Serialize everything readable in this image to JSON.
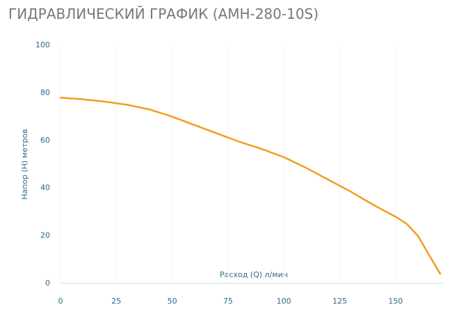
{
  "chart_data": {
    "type": "line",
    "title": "ГИДРАВЛИЧЕСКИЙ ГРАФИК (AMH-280-10S)",
    "x_label": "Расход (Q) л/мин",
    "y_label": "Напор (H) метров",
    "x": [
      0,
      10,
      20,
      30,
      40,
      50,
      60,
      70,
      80,
      90,
      100,
      110,
      120,
      130,
      140,
      150,
      155,
      160,
      165,
      170
    ],
    "series": [
      {
        "name": "AMH-280-10S",
        "color": "#f39c1f",
        "values": [
          78,
          77.3,
          76.3,
          75,
          73,
          70,
          66.5,
          63,
          59.5,
          56.5,
          53,
          48.5,
          43.5,
          38.5,
          33,
          28,
          25,
          20,
          12,
          4
        ]
      }
    ],
    "xlim": [
      0,
      170
    ],
    "ylim": [
      0,
      100
    ],
    "xticks": [
      0,
      25,
      50,
      75,
      100,
      125,
      150
    ],
    "yticks": [
      0,
      20,
      40,
      60,
      80,
      100
    ],
    "grid": true
  }
}
